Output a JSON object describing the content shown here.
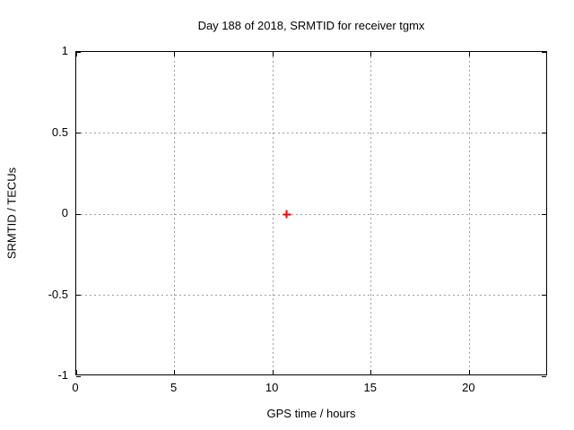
{
  "figure": {
    "background": "#ffffff"
  },
  "chart_data": {
    "type": "scatter",
    "title": "Day 188 of 2018, SRMTID for receiver tgmx",
    "xlabel": "GPS time / hours",
    "ylabel": "SRMTID / TECUs",
    "xlim": [
      0,
      24
    ],
    "ylim": [
      -1,
      1
    ],
    "xticks": [
      0,
      5,
      10,
      15,
      20
    ],
    "xtick_labels": [
      "0",
      "5",
      "10",
      "15",
      "20"
    ],
    "yticks": [
      -1,
      -0.5,
      0,
      0.5,
      1
    ],
    "ytick_labels": [
      "-1",
      "-0.5",
      "0",
      "0.5",
      "1"
    ],
    "grid": true,
    "legend": "none",
    "axis_color": "#000000",
    "grid_color": "#9e9e9e",
    "text_color": "#000000",
    "series": [
      {
        "marker": "plus",
        "color": "#ff0000",
        "points": [
          [
            10.7,
            0.0
          ]
        ]
      }
    ]
  }
}
